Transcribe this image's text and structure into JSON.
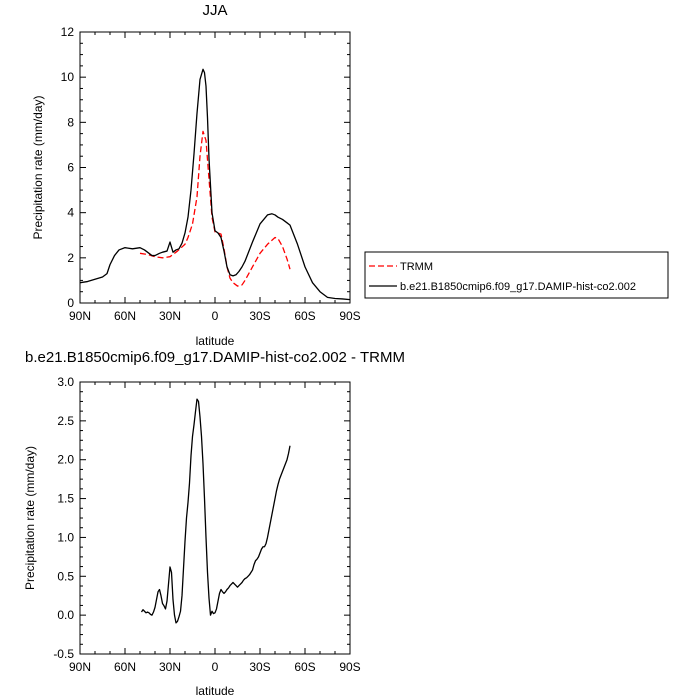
{
  "chart_data": [
    {
      "type": "line",
      "title": "JJA",
      "xlabel": "latitude",
      "ylabel": "Precipitation rate (mm/day)",
      "xlim": [
        90,
        -90
      ],
      "ylim": [
        0,
        12
      ],
      "x_ticks": [
        {
          "value": 90,
          "label": "90N"
        },
        {
          "value": 60,
          "label": "60N"
        },
        {
          "value": 30,
          "label": "30N"
        },
        {
          "value": 0,
          "label": "0"
        },
        {
          "value": -30,
          "label": "30S"
        },
        {
          "value": -60,
          "label": "60S"
        },
        {
          "value": -90,
          "label": "90S"
        }
      ],
      "y_ticks": [
        {
          "value": 0,
          "label": "0"
        },
        {
          "value": 2,
          "label": "2"
        },
        {
          "value": 4,
          "label": "4"
        },
        {
          "value": 6,
          "label": "6"
        },
        {
          "value": 8,
          "label": "8"
        },
        {
          "value": 10,
          "label": "10"
        },
        {
          "value": 12,
          "label": "12"
        }
      ],
      "grid": false,
      "legend_position": "right",
      "series": [
        {
          "name": "TRMM",
          "color": "#ff0000",
          "dash": "dashed",
          "x": [
            50,
            45,
            40,
            35,
            30,
            25,
            20,
            18,
            15,
            12,
            10,
            8,
            6,
            4,
            2,
            0,
            -2,
            -4,
            -6,
            -8,
            -10,
            -12,
            -15,
            -18,
            -20,
            -25,
            -30,
            -35,
            -40,
            -42,
            -45,
            -48,
            -50
          ],
          "y": [
            2.2,
            2.15,
            2.05,
            2.0,
            2.05,
            2.3,
            2.6,
            2.9,
            3.5,
            4.7,
            6.5,
            7.6,
            7.2,
            5.5,
            3.8,
            3.15,
            3.1,
            3.05,
            2.4,
            1.6,
            1.1,
            0.9,
            0.75,
            0.8,
            1.0,
            1.6,
            2.2,
            2.6,
            2.9,
            2.85,
            2.5,
            1.95,
            1.5
          ]
        },
        {
          "name": "b.e21.B1850cmip6.f09_g17.DAMIP-hist-co2.002",
          "color": "#000000",
          "dash": "solid",
          "x": [
            90,
            85,
            80,
            75,
            72,
            70,
            67,
            64,
            60,
            55,
            50,
            47,
            45,
            42,
            40,
            37,
            35,
            32,
            30,
            28,
            26,
            24,
            22,
            20,
            18,
            16,
            14,
            12,
            10,
            8,
            7,
            6,
            5,
            4,
            2,
            0,
            -2,
            -4,
            -6,
            -8,
            -10,
            -12,
            -14,
            -16,
            -18,
            -20,
            -25,
            -30,
            -35,
            -38,
            -40,
            -42,
            -45,
            -48,
            -50,
            -55,
            -60,
            -65,
            -70,
            -75,
            -80,
            -85,
            -90
          ],
          "y": [
            0.9,
            0.95,
            1.05,
            1.15,
            1.3,
            1.7,
            2.1,
            2.35,
            2.45,
            2.4,
            2.45,
            2.35,
            2.25,
            2.1,
            2.1,
            2.2,
            2.25,
            2.3,
            2.7,
            2.25,
            2.35,
            2.4,
            2.65,
            3.1,
            3.8,
            5.0,
            6.6,
            8.4,
            9.9,
            10.35,
            10.2,
            9.6,
            8.2,
            6.4,
            4.0,
            3.2,
            3.1,
            2.9,
            2.3,
            1.6,
            1.25,
            1.2,
            1.25,
            1.4,
            1.6,
            1.85,
            2.7,
            3.5,
            3.9,
            3.95,
            3.9,
            3.8,
            3.7,
            3.55,
            3.45,
            2.6,
            1.6,
            0.9,
            0.5,
            0.25,
            0.2,
            0.18,
            0.15
          ]
        }
      ]
    },
    {
      "type": "line",
      "title": "b.e21.B1850cmip6.f09_g17.DAMIP-hist-co2.002 - TRMM",
      "xlabel": "latitude",
      "ylabel": "Precipitation rate (mm/day)",
      "xlim": [
        90,
        -90
      ],
      "ylim": [
        -0.5,
        3.0
      ],
      "x_ticks": [
        {
          "value": 90,
          "label": "90N"
        },
        {
          "value": 60,
          "label": "60N"
        },
        {
          "value": 30,
          "label": "30N"
        },
        {
          "value": 0,
          "label": "0"
        },
        {
          "value": -30,
          "label": "30S"
        },
        {
          "value": -60,
          "label": "60S"
        },
        {
          "value": -90,
          "label": "90S"
        }
      ],
      "y_ticks": [
        {
          "value": -0.5,
          "label": "-0.5"
        },
        {
          "value": 0.0,
          "label": "0.0"
        },
        {
          "value": 0.5,
          "label": "0.5"
        },
        {
          "value": 1.0,
          "label": "1.0"
        },
        {
          "value": 1.5,
          "label": "1.5"
        },
        {
          "value": 2.0,
          "label": "2.0"
        },
        {
          "value": 2.5,
          "label": "2.5"
        },
        {
          "value": 3.0,
          "label": "3.0"
        }
      ],
      "grid": false,
      "series": [
        {
          "color": "#000000",
          "dash": "solid",
          "x": [
            49,
            48,
            47,
            46,
            45,
            44,
            43,
            42,
            41,
            40,
            39,
            38,
            37,
            36,
            35,
            34,
            33,
            32,
            31,
            30,
            29,
            28,
            27,
            26,
            25,
            24,
            23,
            22,
            21,
            20,
            19,
            18,
            17,
            16,
            15,
            14,
            13,
            12,
            11,
            10,
            9,
            8,
            7,
            6,
            5,
            4,
            3,
            2,
            1,
            0,
            -1,
            -2,
            -3,
            -4,
            -5,
            -6,
            -7,
            -8,
            -9,
            -10,
            -11,
            -12,
            -13,
            -14,
            -15,
            -16,
            -17,
            -18,
            -19,
            -20,
            -21,
            -22,
            -23,
            -24,
            -25,
            -26,
            -27,
            -28,
            -29,
            -30,
            -31,
            -32,
            -33,
            -34,
            -35,
            -36,
            -37,
            -38,
            -39,
            -40,
            -41,
            -42,
            -43,
            -44,
            -45,
            -46,
            -47,
            -48,
            -49,
            -50
          ],
          "y": [
            0.04,
            0.07,
            0.05,
            0.03,
            0.04,
            0.03,
            0.01,
            0.0,
            0.04,
            0.1,
            0.2,
            0.3,
            0.33,
            0.25,
            0.15,
            0.12,
            0.08,
            0.18,
            0.4,
            0.62,
            0.55,
            0.2,
            0.0,
            -0.1,
            -0.08,
            -0.02,
            0.05,
            0.25,
            0.6,
            0.95,
            1.25,
            1.45,
            1.7,
            2.05,
            2.3,
            2.45,
            2.62,
            2.78,
            2.75,
            2.55,
            2.3,
            1.95,
            1.5,
            1.0,
            0.55,
            0.22,
            0.0,
            0.05,
            0.02,
            0.03,
            0.08,
            0.18,
            0.28,
            0.33,
            0.3,
            0.28,
            0.3,
            0.33,
            0.35,
            0.38,
            0.4,
            0.42,
            0.4,
            0.38,
            0.36,
            0.38,
            0.4,
            0.42,
            0.45,
            0.47,
            0.48,
            0.5,
            0.52,
            0.55,
            0.58,
            0.65,
            0.7,
            0.72,
            0.75,
            0.8,
            0.85,
            0.88,
            0.88,
            0.92,
            1.0,
            1.1,
            1.2,
            1.3,
            1.4,
            1.5,
            1.6,
            1.68,
            1.75,
            1.8,
            1.85,
            1.9,
            1.95,
            2.0,
            2.08,
            2.18
          ]
        }
      ]
    }
  ]
}
